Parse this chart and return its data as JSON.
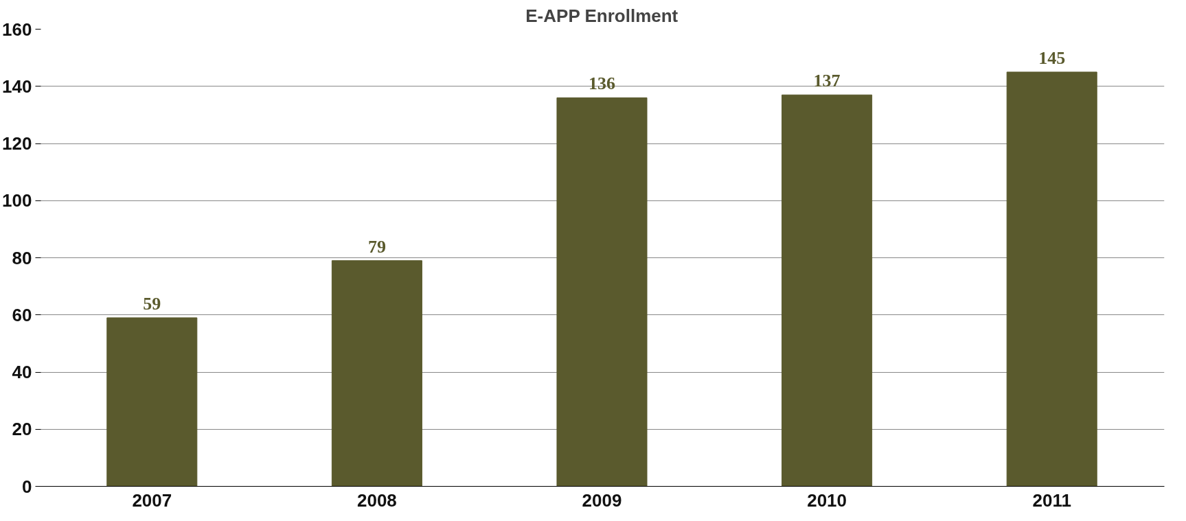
{
  "chart_data": {
    "type": "bar",
    "title": "E-APP Enrollment",
    "categories": [
      "2007",
      "2008",
      "2009",
      "2010",
      "2011"
    ],
    "values": [
      59,
      79,
      136,
      137,
      145
    ],
    "color": "#5a5a2d",
    "ylim": [
      0,
      160
    ],
    "yticks": [
      0,
      20,
      40,
      60,
      80,
      100,
      120,
      140,
      160
    ],
    "grid": "y",
    "data_labels": true
  }
}
